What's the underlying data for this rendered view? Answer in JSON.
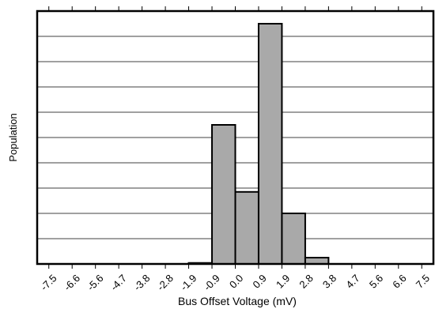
{
  "chart_data": {
    "type": "bar",
    "title": "",
    "xlabel": "Bus Offset Voltage (mV)",
    "ylabel": "Population",
    "categories": [
      "-7.5",
      "-6.6",
      "-5.6",
      "-4.7",
      "-3.8",
      "-2.8",
      "-1.9",
      "-0.9",
      "0.0",
      "0.9",
      "1.9",
      "2.8",
      "3.8",
      "4.7",
      "5.6",
      "6.6",
      "7.5"
    ],
    "bins": [
      {
        "from": "-1.9",
        "to": "-0.9",
        "value": 0.04
      },
      {
        "from": "-0.9",
        "to": "0.0",
        "value": 5.5
      },
      {
        "from": "0.0",
        "to": "0.9",
        "value": 2.85
      },
      {
        "from": "0.9",
        "to": "1.9",
        "value": 9.5
      },
      {
        "from": "1.9",
        "to": "2.8",
        "value": 2.0
      },
      {
        "from": "2.8",
        "to": "3.8",
        "value": 0.25
      }
    ],
    "ylim": [
      0,
      10
    ],
    "y_gridlines": 10,
    "grid": true,
    "y_tick_labels_shown": false,
    "bar_color": "#a9a9a9",
    "bar_edge_color": "#000000",
    "legend": "none"
  }
}
